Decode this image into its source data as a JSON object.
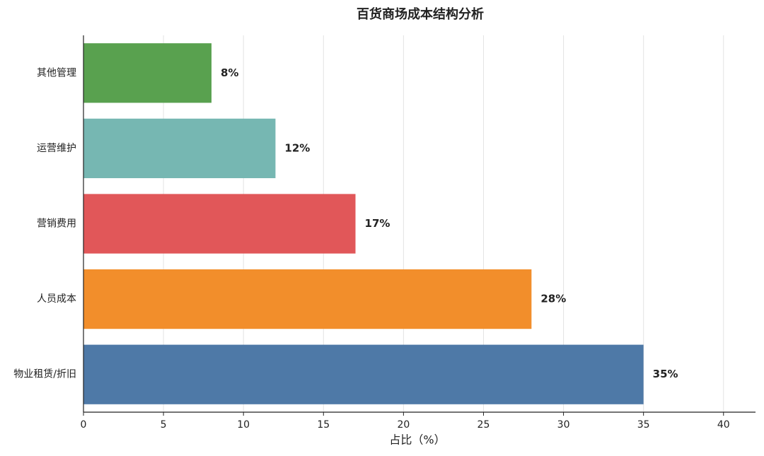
{
  "chart_data": {
    "type": "hbar",
    "title": "百货商场成本结构分析",
    "x_label": "占比（%）",
    "categories": [
      "物业租赁/折旧",
      "人员成本",
      "营销费用",
      "运营维护",
      "其他管理"
    ],
    "values": [
      35,
      28,
      17,
      12,
      8
    ],
    "value_labels": [
      "35%",
      "28%",
      "17%",
      "12%",
      "8%"
    ],
    "colors": [
      "#4e79a7",
      "#f28e2b",
      "#e15759",
      "#76b7b2",
      "#59a14f"
    ],
    "xlim": [
      0,
      42
    ],
    "xticks": [
      0,
      5,
      10,
      15,
      20,
      25,
      30,
      35,
      40
    ],
    "grid": true
  }
}
